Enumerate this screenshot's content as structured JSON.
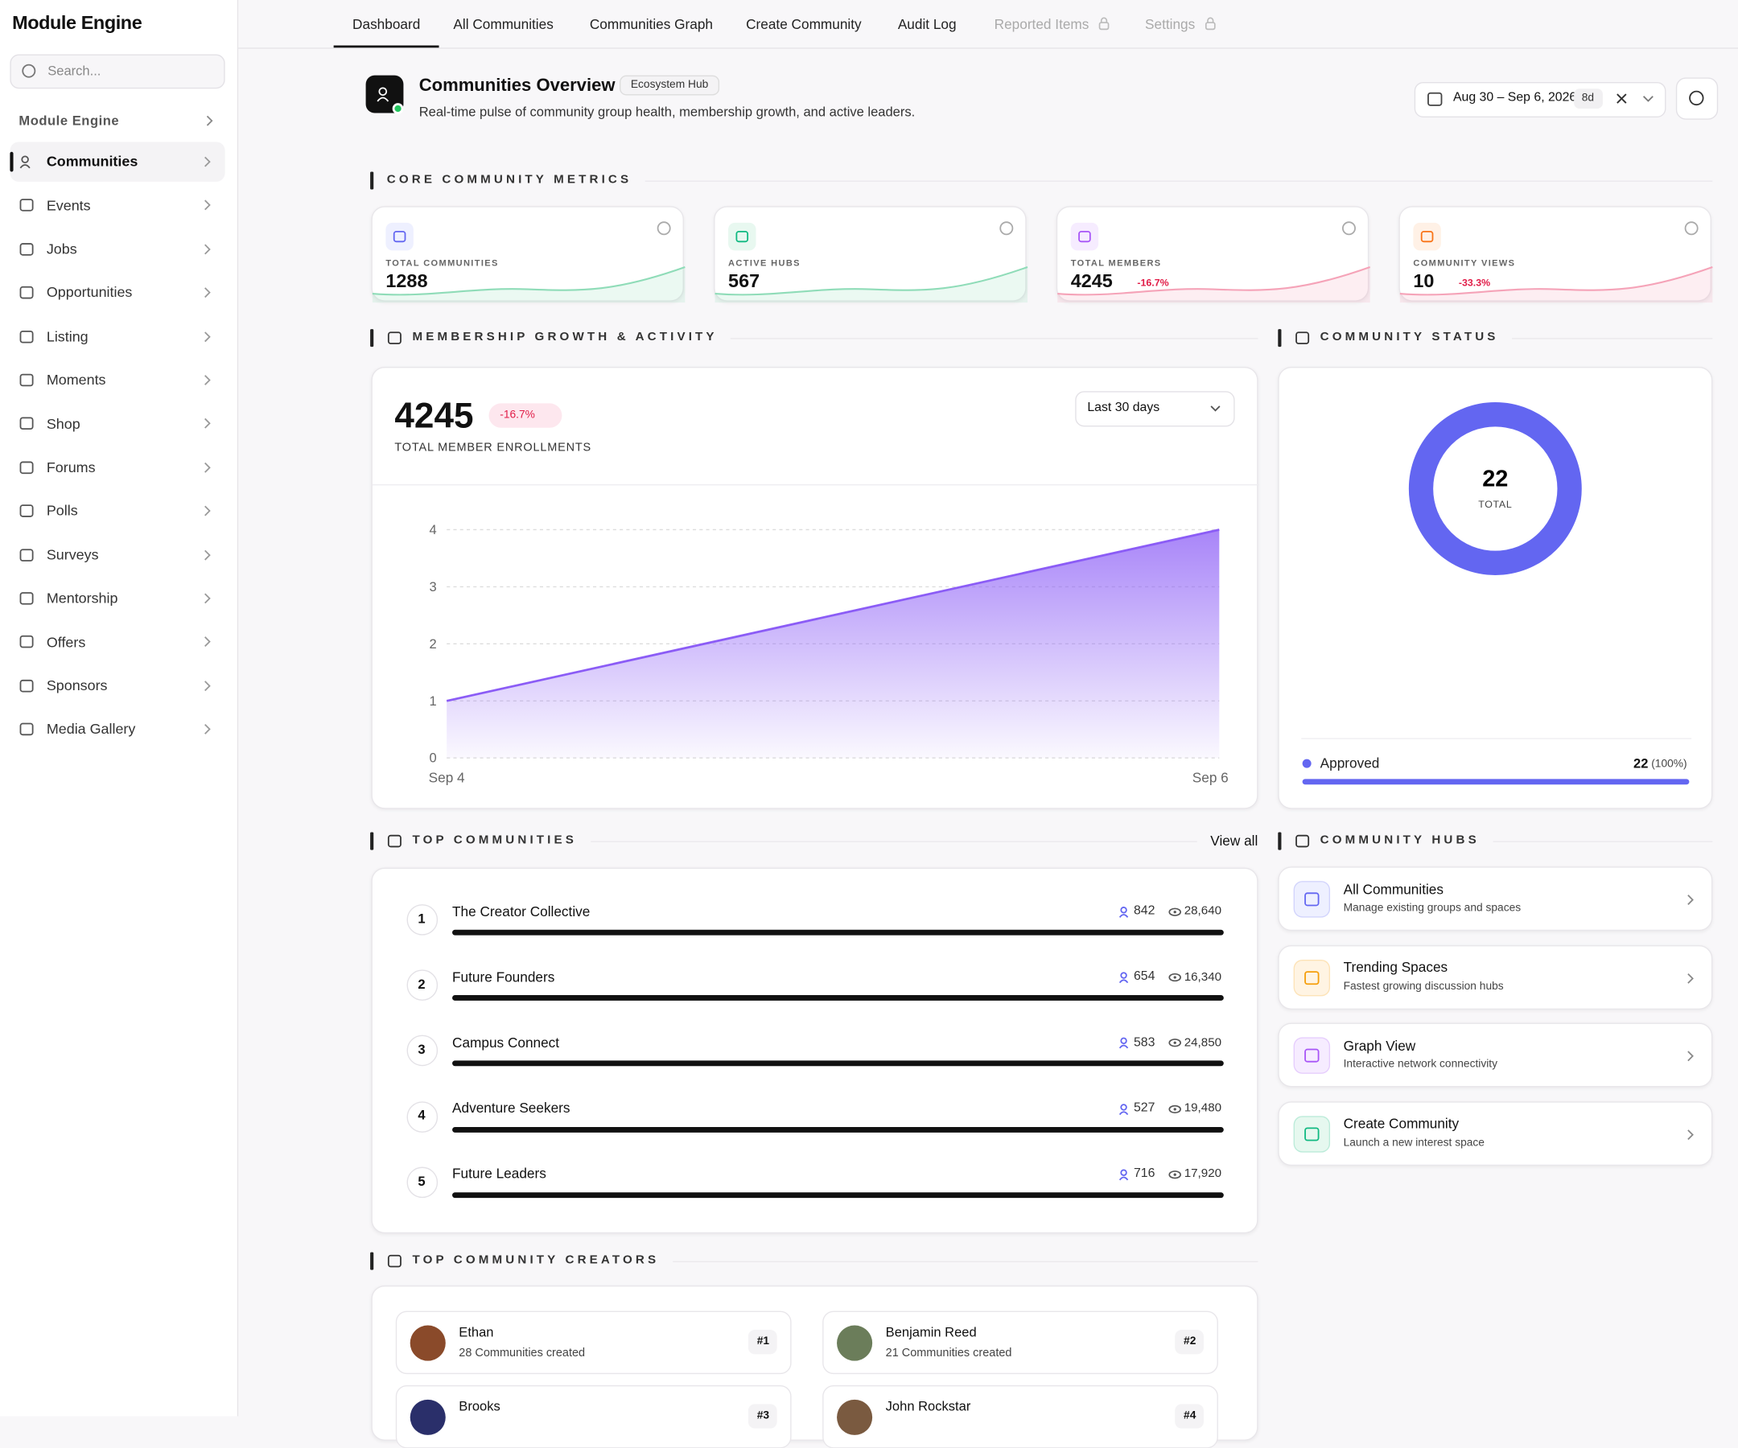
{
  "sidebar": {
    "brand": "Module Engine",
    "search_placeholder": "Search...",
    "section": "Module Engine",
    "items": [
      {
        "label": "Communities",
        "active": true
      },
      {
        "label": "Events"
      },
      {
        "label": "Jobs"
      },
      {
        "label": "Opportunities"
      },
      {
        "label": "Listing"
      },
      {
        "label": "Moments"
      },
      {
        "label": "Shop"
      },
      {
        "label": "Forums"
      },
      {
        "label": "Polls"
      },
      {
        "label": "Surveys"
      },
      {
        "label": "Mentorship"
      },
      {
        "label": "Offers"
      },
      {
        "label": "Sponsors"
      },
      {
        "label": "Media Gallery"
      }
    ]
  },
  "tabs": [
    {
      "label": "Dashboard",
      "active": true
    },
    {
      "label": "All Communities"
    },
    {
      "label": "Communities Graph"
    },
    {
      "label": "Create Community"
    },
    {
      "label": "Audit Log"
    },
    {
      "label": "Reported Items",
      "locked": true
    },
    {
      "label": "Settings",
      "locked": true
    }
  ],
  "header": {
    "title": "Communities Overview",
    "badge": "Ecosystem Hub",
    "subtitle": "Real-time pulse of community group health, membership growth, and active leaders.",
    "date_range": "Aug 30 – Sep 6, 2026",
    "range_days": "8d"
  },
  "core_metrics": {
    "title": "CORE COMMUNITY METRICS",
    "cards": [
      {
        "label": "TOTAL COMMUNITIES",
        "value": 1288
      },
      {
        "label": "ACTIVE HUBS",
        "value": 567
      },
      {
        "label": "TOTAL MEMBERS",
        "value": 4245,
        "change": "-16.7%"
      },
      {
        "label": "COMMUNITY VIEWS",
        "value": 10,
        "change": "-33.3%"
      }
    ]
  },
  "growth": {
    "title": "MEMBERSHIP GROWTH & ACTIVITY",
    "total": 4245,
    "change": "-16.7%",
    "total_label": "TOTAL MEMBER ENROLLMENTS",
    "range_select": "Last 30 days",
    "chart_data": {
      "type": "area",
      "x": [
        "Sep 4",
        "Sep 6"
      ],
      "values": [
        1,
        4
      ],
      "ylim": [
        0,
        4
      ],
      "yticks": [
        0,
        1,
        2,
        3,
        4
      ],
      "color": "#8b5cf6",
      "grid": true
    }
  },
  "status": {
    "title": "COMMUNITY STATUS",
    "chart_data": {
      "type": "donut",
      "total": 22,
      "total_label": "TOTAL",
      "categories": [
        "Approved"
      ],
      "values": [
        22
      ],
      "shares": [
        "(100%)"
      ],
      "color": "#6366f1"
    }
  },
  "top_communities": {
    "title": "TOP COMMUNITIES",
    "view_all": "View all",
    "rows": [
      {
        "rank": 1,
        "name": "The Creator Collective",
        "members": 842,
        "views": "28,640"
      },
      {
        "rank": 2,
        "name": "Future Founders",
        "members": 654,
        "views": "16,340"
      },
      {
        "rank": 3,
        "name": "Campus Connect",
        "members": 583,
        "views": "24,850"
      },
      {
        "rank": 4,
        "name": "Adventure Seekers",
        "members": 527,
        "views": "19,480"
      },
      {
        "rank": 5,
        "name": "Future Leaders",
        "members": 716,
        "views": "17,920"
      }
    ]
  },
  "hubs": {
    "title": "COMMUNITY HUBS",
    "items": [
      {
        "title": "All Communities",
        "desc": "Manage existing groups and spaces"
      },
      {
        "title": "Trending Spaces",
        "desc": "Fastest growing discussion hubs"
      },
      {
        "title": "Graph View",
        "desc": "Interactive network connectivity"
      },
      {
        "title": "Create Community",
        "desc": "Launch a new interest space"
      }
    ]
  },
  "creators": {
    "title": "TOP COMMUNITY CREATORS",
    "items": [
      {
        "name": "Ethan",
        "count": "28 Communities created",
        "rank": "#1"
      },
      {
        "name": "Benjamin Reed",
        "count": "21 Communities created",
        "rank": "#2"
      },
      {
        "name": "Brooks",
        "rank": "#3"
      },
      {
        "name": "John Rockstar",
        "rank": "#4"
      }
    ]
  }
}
